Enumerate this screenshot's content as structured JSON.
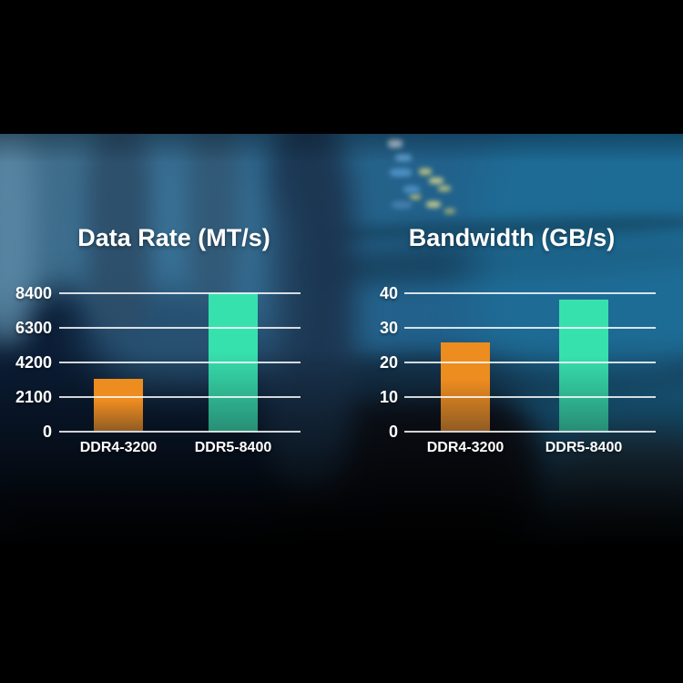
{
  "chart_data": [
    {
      "type": "bar",
      "title": "Data Rate (MT/s)",
      "ylabel": "MT/s",
      "categories": [
        "DDR4-3200",
        "DDR5-8400"
      ],
      "values": [
        3200,
        8400
      ],
      "yticks": [
        0,
        2100,
        4200,
        6300,
        8400
      ],
      "ylim": [
        0,
        8400
      ],
      "bar_colors": [
        "#ED8C1F",
        "#37E1AE"
      ],
      "grid": "horizontal",
      "legend": "none"
    },
    {
      "type": "bar",
      "title": "Bandwidth (GB/s)",
      "ylabel": "GB/s",
      "categories": [
        "DDR4-3200",
        "DDR5-8400"
      ],
      "values": [
        25.6,
        38
      ],
      "yticks": [
        0,
        10,
        20,
        30,
        40
      ],
      "ylim": [
        0,
        40
      ],
      "bar_colors": [
        "#ED8C1F",
        "#37E1AE"
      ],
      "grid": "horizontal",
      "legend": "none"
    }
  ],
  "style": {
    "text_color": "#FFFFFF",
    "gridline_color": "rgba(255,255,255,0.82)",
    "letterbox_color": "#000000",
    "photo_tint": "#22618B"
  }
}
